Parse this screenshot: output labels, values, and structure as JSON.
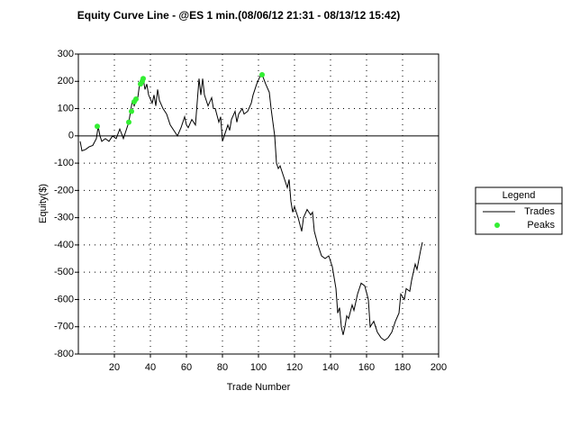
{
  "chart_data": {
    "type": "line",
    "title": "Equity Curve Line - @ES 1 min.(08/06/12 21:31 - 08/13/12 15:42)",
    "x_label": "Trade Number",
    "y_label": "Equity($)",
    "legend_title": "Legend",
    "legend": "right",
    "grid": true,
    "xlim": [
      0,
      200
    ],
    "ylim": [
      -800,
      300
    ],
    "xticks": [
      20,
      40,
      60,
      80,
      100,
      120,
      140,
      160,
      180,
      200
    ],
    "yticks": [
      -800,
      -700,
      -600,
      -500,
      -400,
      -300,
      -200,
      -100,
      0,
      100,
      200,
      300
    ],
    "series": [
      {
        "name": "Trades",
        "type": "line",
        "color": "#000000",
        "x": [
          1,
          2,
          4,
          6,
          8,
          10,
          11,
          12,
          13,
          15,
          17,
          19,
          21,
          23,
          25,
          27,
          28,
          29,
          30,
          31,
          32,
          33,
          34,
          35,
          36,
          37,
          38,
          39,
          41,
          42,
          43,
          44,
          45,
          47,
          49,
          51,
          53,
          55,
          57,
          59,
          60,
          61,
          63,
          65,
          67,
          68,
          69,
          70,
          72,
          74,
          75,
          76,
          78,
          79,
          80,
          81,
          83,
          84,
          85,
          87,
          88,
          89,
          91,
          92,
          94,
          96,
          97,
          99,
          101,
          102,
          104,
          106,
          107,
          108,
          109,
          110,
          111,
          112,
          114,
          116,
          117,
          118,
          119,
          120,
          122,
          124,
          125,
          127,
          129,
          130,
          131,
          133,
          135,
          137,
          139,
          141,
          143,
          144,
          145,
          146,
          147,
          148,
          149,
          150,
          152,
          153,
          155,
          157,
          159,
          161,
          162,
          164,
          166,
          168,
          170,
          172,
          174,
          175,
          176,
          178,
          179,
          181,
          182,
          184,
          185,
          187,
          188,
          190,
          191
        ],
        "values": [
          -20,
          -55,
          -50,
          -40,
          -35,
          -10,
          35,
          0,
          -20,
          -10,
          -20,
          0,
          -10,
          25,
          -10,
          30,
          50,
          90,
          130,
          110,
          130,
          140,
          190,
          200,
          210,
          170,
          190,
          150,
          120,
          150,
          110,
          170,
          130,
          100,
          80,
          40,
          20,
          0,
          30,
          70,
          40,
          30,
          60,
          40,
          210,
          150,
          210,
          150,
          110,
          140,
          100,
          100,
          50,
          70,
          -20,
          0,
          40,
          20,
          60,
          90,
          50,
          80,
          100,
          80,
          90,
          120,
          150,
          190,
          220,
          225,
          190,
          160,
          100,
          50,
          0,
          -100,
          -120,
          -110,
          -150,
          -190,
          -160,
          -240,
          -280,
          -260,
          -300,
          -350,
          -300,
          -270,
          -290,
          -280,
          -350,
          -400,
          -440,
          -450,
          -440,
          -480,
          -560,
          -650,
          -630,
          -700,
          -730,
          -700,
          -660,
          -670,
          -620,
          -640,
          -580,
          -540,
          -550,
          -600,
          -700,
          -680,
          -720,
          -740,
          -750,
          -740,
          -720,
          -700,
          -680,
          -650,
          -580,
          -600,
          -560,
          -570,
          -530,
          -470,
          -490,
          -420,
          -390
        ]
      },
      {
        "name": "Peaks",
        "type": "scatter",
        "color": "#33ee33",
        "x": [
          10.5,
          28,
          29.5,
          31,
          32,
          34.5,
          35.5,
          36,
          102
        ],
        "values": [
          35,
          50,
          90,
          125,
          135,
          190,
          200,
          210,
          224
        ]
      }
    ]
  }
}
